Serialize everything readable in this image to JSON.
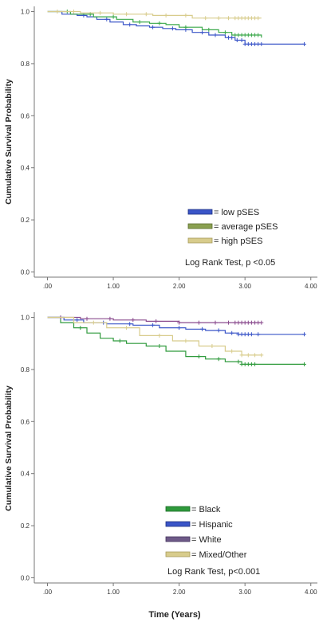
{
  "chart_data": [
    {
      "type": "line",
      "title": "",
      "xlabel": "",
      "ylabel": "Cumulative Survival Probability",
      "xlim": [
        -0.2,
        4.1
      ],
      "ylim": [
        -0.02,
        1.02
      ],
      "xticks": [
        0,
        1,
        2,
        3,
        4
      ],
      "xtick_labels": [
        ".00",
        "1.00",
        "2.00",
        "3.00",
        "4.00"
      ],
      "yticks": [
        0,
        0.2,
        0.4,
        0.6,
        0.8,
        1.0
      ],
      "ytick_labels": [
        "0.0",
        "0.2",
        "0.4",
        "0.6",
        "0.8",
        "1.0"
      ],
      "step": true,
      "annotation": "Log Rank Test, p <0.05",
      "legend_position": "lower-right",
      "series": [
        {
          "name": "= low pSES",
          "color": "#3a55c8",
          "x": [
            0,
            0.22,
            0.45,
            0.6,
            0.75,
            0.95,
            1.15,
            1.35,
            1.55,
            1.75,
            1.95,
            2.2,
            2.45,
            2.7,
            2.85,
            3.0,
            3.9
          ],
          "y": [
            1.0,
            0.99,
            0.985,
            0.98,
            0.97,
            0.96,
            0.95,
            0.945,
            0.94,
            0.935,
            0.93,
            0.92,
            0.91,
            0.9,
            0.89,
            0.875,
            0.875
          ],
          "censor": [
            0.55,
            0.9,
            1.25,
            1.6,
            1.9,
            2.1,
            2.35,
            2.55,
            2.75,
            2.8,
            2.88,
            2.95,
            3.0,
            3.05,
            3.1,
            3.15,
            3.2,
            3.25,
            3.9
          ]
        },
        {
          "name": "= average pSES",
          "color": "#3aa84a",
          "x": [
            0,
            0.35,
            0.7,
            1.05,
            1.3,
            1.55,
            1.8,
            2.0,
            2.35,
            2.6,
            2.8,
            3.25
          ],
          "y": [
            1.0,
            0.99,
            0.98,
            0.97,
            0.96,
            0.955,
            0.95,
            0.94,
            0.93,
            0.92,
            0.91,
            0.9
          ],
          "censor": [
            0.3,
            0.65,
            1.0,
            1.4,
            1.7,
            2.1,
            2.45,
            2.7,
            2.85,
            2.9,
            2.95,
            3.0,
            3.05,
            3.1,
            3.15,
            3.2
          ]
        },
        {
          "name": "= high pSES",
          "color": "#d8cc8c",
          "x": [
            0,
            0.5,
            1.0,
            1.6,
            2.2,
            3.25
          ],
          "y": [
            1.0,
            0.995,
            0.99,
            0.985,
            0.975,
            0.975
          ],
          "censor": [
            0.15,
            0.4,
            0.8,
            1.2,
            1.5,
            1.8,
            2.1,
            2.4,
            2.6,
            2.75,
            2.85,
            2.9,
            2.95,
            3.0,
            3.05,
            3.1,
            3.15,
            3.2
          ]
        }
      ]
    },
    {
      "type": "line",
      "title": "",
      "xlabel": "Time (Years)",
      "ylabel": "Cumulative Survival Probability",
      "xlim": [
        -0.2,
        4.1
      ],
      "ylim": [
        -0.02,
        1.02
      ],
      "xticks": [
        0,
        1,
        2,
        3,
        4
      ],
      "xtick_labels": [
        ".00",
        "1.00",
        "2.00",
        "3.00",
        "4.00"
      ],
      "yticks": [
        0,
        0.2,
        0.4,
        0.6,
        0.8,
        1.0
      ],
      "ytick_labels": [
        "0.0",
        "0.2",
        "0.4",
        "0.6",
        "0.8",
        "1.0"
      ],
      "step": true,
      "annotation": "Log Rank Test, p<0.001",
      "legend_position": "lower-left",
      "series": [
        {
          "name": "= Black",
          "color": "#2f9a3c",
          "x": [
            0,
            0.2,
            0.4,
            0.6,
            0.8,
            1.0,
            1.2,
            1.5,
            1.8,
            2.1,
            2.4,
            2.7,
            2.95,
            3.9
          ],
          "y": [
            1.0,
            0.98,
            0.96,
            0.94,
            0.92,
            0.91,
            0.9,
            0.89,
            0.87,
            0.85,
            0.84,
            0.83,
            0.82,
            0.82
          ],
          "censor": [
            0.5,
            1.1,
            1.7,
            2.3,
            2.6,
            2.9,
            2.95,
            3.0,
            3.05,
            3.1,
            3.15,
            3.9
          ]
        },
        {
          "name": "= Hispanic",
          "color": "#3a55c8",
          "x": [
            0,
            0.25,
            0.55,
            0.9,
            1.3,
            1.7,
            2.1,
            2.4,
            2.7,
            2.9,
            3.9
          ],
          "y": [
            1.0,
            0.99,
            0.98,
            0.975,
            0.97,
            0.96,
            0.955,
            0.95,
            0.94,
            0.935,
            0.935
          ],
          "censor": [
            0.45,
            0.85,
            1.25,
            1.6,
            2.0,
            2.35,
            2.6,
            2.8,
            2.9,
            2.95,
            3.0,
            3.05,
            3.1,
            3.2,
            3.9
          ]
        },
        {
          "name": "= White",
          "color": "#8a4b8e",
          "x": [
            0,
            0.5,
            1.0,
            1.5,
            2.0,
            2.5,
            3.25
          ],
          "y": [
            1.0,
            0.995,
            0.99,
            0.985,
            0.98,
            0.98,
            0.98
          ],
          "censor": [
            0.2,
            0.6,
            0.95,
            1.3,
            1.65,
            2.0,
            2.3,
            2.55,
            2.75,
            2.85,
            2.9,
            2.95,
            3.0,
            3.05,
            3.1,
            3.15,
            3.2,
            3.25
          ]
        },
        {
          "name": "= Mixed/Other",
          "color": "#d8cc8c",
          "x": [
            0,
            0.4,
            0.9,
            1.4,
            1.9,
            2.3,
            2.7,
            2.95,
            3.25
          ],
          "y": [
            1.0,
            0.98,
            0.96,
            0.93,
            0.91,
            0.89,
            0.87,
            0.855,
            0.855
          ],
          "censor": [
            0.7,
            1.2,
            1.7,
            2.1,
            2.5,
            2.8,
            2.95,
            3.05,
            3.15,
            3.25
          ]
        }
      ]
    }
  ]
}
